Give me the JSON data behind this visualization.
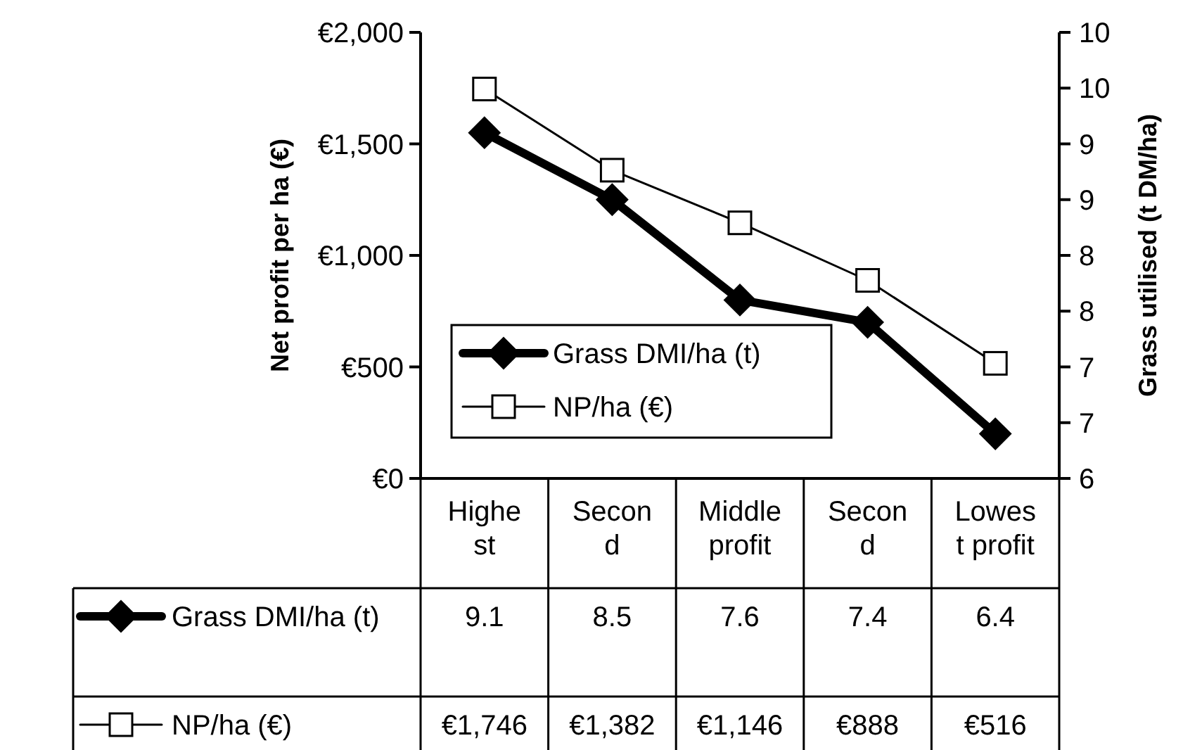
{
  "chart_data": {
    "type": "line",
    "categories": [
      "Highest",
      "Second",
      "Middle profit",
      "Second",
      "Lowest profit"
    ],
    "ylabel": "Net profit per ha (€)",
    "y2label": "Grass utilised (t DM/ha)",
    "ylim": [
      0,
      2000
    ],
    "yticks": [
      {
        "value": 0,
        "label": "€0"
      },
      {
        "value": 500,
        "label": "€500"
      },
      {
        "value": 1000,
        "label": "€1,000"
      },
      {
        "value": 1500,
        "label": "€1,500"
      },
      {
        "value": 2000,
        "label": "€2,000"
      }
    ],
    "y2lim": [
      6,
      10
    ],
    "y2ticks": [
      6,
      {
        "value": 6.5,
        "label": "7"
      },
      7,
      {
        "value": 7.5,
        "label": "8"
      },
      8,
      {
        "value": 8.5,
        "label": "9"
      },
      9,
      {
        "value": 9.5,
        "label": "10"
      },
      10
    ],
    "legend": "bottom left",
    "grid": false,
    "series": [
      {
        "name": "Grass DMI/ha (t)",
        "color": "#000000",
        "axis": "y2",
        "marker": "diamond",
        "line_style": "solid",
        "values": [
          9.1,
          8.5,
          7.6,
          7.4,
          6.4
        ],
        "value_labels": [
          "9.1",
          "8.5",
          "7.6",
          "7.4",
          "6.4"
        ]
      },
      {
        "name": "NP/ha (€)",
        "color": "#000000",
        "marker": "square",
        "line_style": "solid",
        "values": [
          1746,
          1382,
          1146,
          888,
          516
        ],
        "value_labels": [
          "€1,746",
          "€1,382",
          "€1,146",
          "€888",
          "€516"
        ]
      }
    ]
  }
}
